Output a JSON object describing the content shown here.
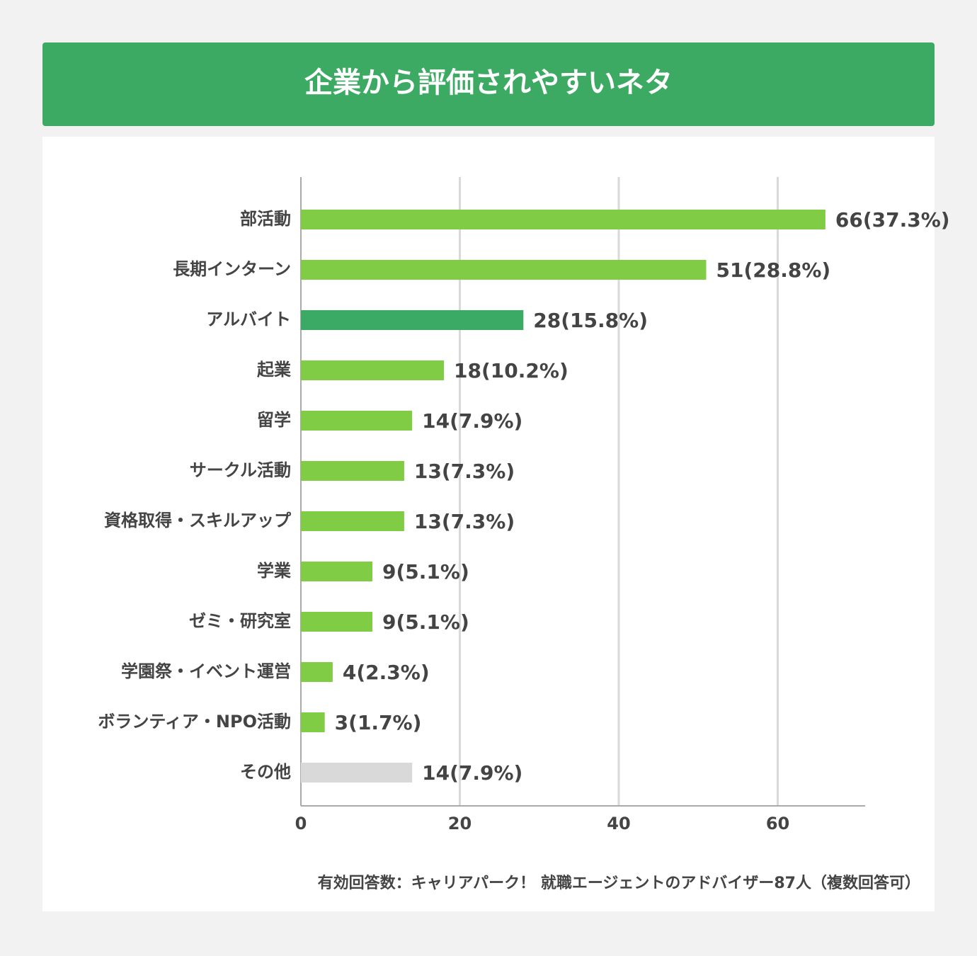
{
  "chart_data": {
    "type": "barh",
    "title": "企業から評価されやすいネタ",
    "categories": [
      "部活動",
      "長期インターン",
      "アルバイト",
      "起業",
      "留学",
      "サークル活動",
      "資格取得・スキルアップ",
      "学業",
      "ゼミ・研究室",
      "学園祭・イベント運営",
      "ボランティア・NPO活動",
      "その他"
    ],
    "values": [
      66,
      51,
      28,
      18,
      14,
      13,
      13,
      9,
      9,
      4,
      3,
      14
    ],
    "value_labels": [
      "66(37.3%)",
      "51(28.8%)",
      "28(15.8%)",
      "18(10.2%)",
      "14(7.9%)",
      "13(7.3%)",
      "13(7.3%)",
      "9(5.1%)",
      "9(5.1%)",
      "4(2.3%)",
      "3(1.7%)",
      "14(7.9%)"
    ],
    "colors": [
      "#80cc45",
      "#80cc45",
      "#3aaa64",
      "#80cc45",
      "#80cc45",
      "#80cc45",
      "#80cc45",
      "#80cc45",
      "#80cc45",
      "#80cc45",
      "#80cc45",
      "#d9d9d9"
    ],
    "xlim": [
      0,
      71
    ],
    "xticks": [
      0,
      20,
      40,
      60
    ],
    "grid": true,
    "note": "有効回答数：キャリアパーク！ 就職エージェントのアドバイザー87人（複数回答可）"
  }
}
